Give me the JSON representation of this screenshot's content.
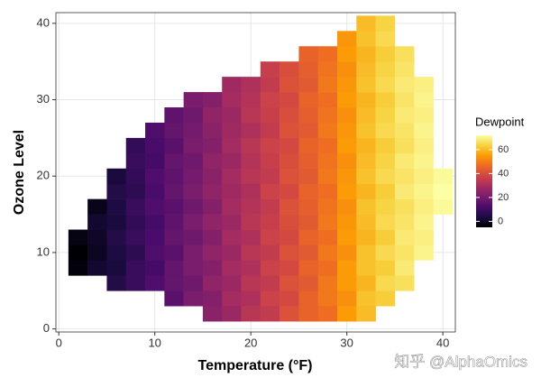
{
  "chart_data": {
    "type": "heatmap",
    "x_label": "Temperature (°F)",
    "y_label": "Ozone Level",
    "legend_title": "Dewpoint",
    "colormap": "inferno",
    "grid": true,
    "xlim": [
      -0.3,
      41.3
    ],
    "ylim": [
      -0.4,
      41.4
    ],
    "xticks": [
      0,
      10,
      20,
      30,
      40
    ],
    "yticks": [
      0,
      10,
      20,
      30,
      40
    ],
    "clim": [
      -5,
      72
    ],
    "cticks": [
      0,
      20,
      40,
      60
    ],
    "x": [
      2,
      4,
      6,
      8,
      10,
      12,
      14,
      16,
      18,
      20,
      22,
      24,
      26,
      28,
      30,
      32,
      34,
      36,
      38,
      40
    ],
    "y": [
      2,
      4,
      6,
      8,
      10,
      12,
      14,
      16,
      18,
      20,
      22,
      24,
      26,
      28,
      30,
      32,
      34,
      36,
      38,
      40
    ],
    "z": [
      [
        null,
        null,
        null,
        null,
        null,
        null,
        null,
        24,
        27,
        33,
        35,
        41,
        45,
        47,
        55,
        60,
        null,
        null,
        null,
        null
      ],
      [
        null,
        null,
        null,
        null,
        null,
        15,
        21,
        23,
        29,
        31,
        37,
        39,
        45,
        49,
        53,
        61,
        63,
        null,
        null,
        null
      ],
      [
        null,
        null,
        5,
        9,
        13,
        17,
        19,
        25,
        27,
        33,
        35,
        41,
        43,
        49,
        55,
        59,
        65,
        66,
        null,
        null
      ],
      [
        -4,
        1,
        3,
        9,
        11,
        17,
        21,
        23,
        29,
        31,
        37,
        39,
        45,
        47,
        55,
        61,
        63,
        68,
        null,
        null
      ],
      [
        -5,
        -1,
        4,
        7,
        13,
        15,
        21,
        25,
        27,
        33,
        35,
        41,
        43,
        49,
        53,
        61,
        65,
        67,
        70,
        null
      ],
      [
        -3,
        0,
        5,
        9,
        12,
        17,
        19,
        23,
        29,
        31,
        37,
        39,
        45,
        47,
        55,
        59,
        63,
        68,
        69,
        null
      ],
      [
        null,
        1,
        3,
        8,
        11,
        16,
        21,
        25,
        27,
        33,
        36,
        40,
        43,
        49,
        54,
        60,
        65,
        67,
        70,
        null
      ],
      [
        null,
        -2,
        4,
        9,
        13,
        15,
        19,
        23,
        29,
        32,
        35,
        41,
        44,
        48,
        53,
        61,
        64,
        66,
        69,
        71
      ],
      [
        null,
        null,
        5,
        7,
        12,
        17,
        21,
        25,
        28,
        31,
        37,
        39,
        45,
        47,
        55,
        59,
        63,
        68,
        70,
        72
      ],
      [
        null,
        null,
        3,
        8,
        13,
        16,
        20,
        24,
        29,
        33,
        35,
        41,
        43,
        49,
        54,
        61,
        65,
        67,
        69,
        71
      ],
      [
        null,
        null,
        null,
        9,
        11,
        17,
        19,
        25,
        27,
        32,
        36,
        40,
        44,
        48,
        53,
        60,
        64,
        68,
        70,
        null
      ],
      [
        null,
        null,
        null,
        8,
        12,
        15,
        21,
        23,
        29,
        33,
        37,
        39,
        45,
        47,
        55,
        59,
        63,
        66,
        69,
        null
      ],
      [
        null,
        null,
        null,
        null,
        13,
        17,
        20,
        24,
        28,
        31,
        35,
        41,
        43,
        49,
        54,
        61,
        65,
        67,
        70,
        null
      ],
      [
        null,
        null,
        null,
        null,
        null,
        16,
        19,
        25,
        27,
        33,
        36,
        40,
        44,
        48,
        53,
        60,
        64,
        68,
        69,
        null
      ],
      [
        null,
        null,
        null,
        null,
        null,
        null,
        21,
        23,
        29,
        32,
        37,
        39,
        45,
        47,
        55,
        59,
        63,
        67,
        70,
        null
      ],
      [
        null,
        null,
        null,
        null,
        null,
        null,
        null,
        null,
        28,
        31,
        35,
        41,
        43,
        49,
        54,
        61,
        65,
        68,
        69,
        null
      ],
      [
        null,
        null,
        null,
        null,
        null,
        null,
        null,
        null,
        null,
        null,
        36,
        40,
        44,
        48,
        53,
        60,
        64,
        67,
        null,
        null
      ],
      [
        null,
        null,
        null,
        null,
        null,
        null,
        null,
        null,
        null,
        null,
        null,
        null,
        45,
        47,
        55,
        59,
        63,
        66,
        null,
        null
      ],
      [
        null,
        null,
        null,
        null,
        null,
        null,
        null,
        null,
        null,
        null,
        null,
        null,
        null,
        null,
        54,
        61,
        65,
        null,
        null,
        null
      ],
      [
        null,
        null,
        null,
        null,
        null,
        null,
        null,
        null,
        null,
        null,
        null,
        null,
        null,
        null,
        null,
        60,
        64,
        null,
        null,
        null
      ]
    ]
  },
  "watermark": "知乎 @AlphaOmics"
}
